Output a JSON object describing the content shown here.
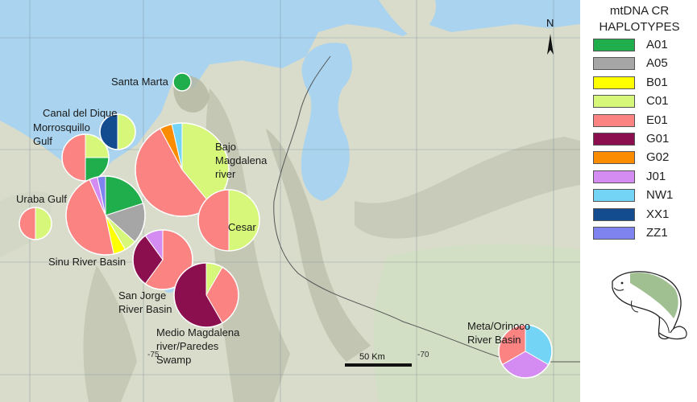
{
  "legend": {
    "title_line1": "mtDNA CR",
    "title_line2": "HAPLOTYPES",
    "items": [
      {
        "label": "A01",
        "color": "#1fae4b"
      },
      {
        "label": "A05",
        "color": "#a6a6a6"
      },
      {
        "label": "B01",
        "color": "#ffff00"
      },
      {
        "label": "C01",
        "color": "#d6f77a"
      },
      {
        "label": "E01",
        "color": "#fb8382"
      },
      {
        "label": "G01",
        "color": "#8b0f4f"
      },
      {
        "label": "G02",
        "color": "#fb8c00"
      },
      {
        "label": "J01",
        "color": "#d48cf2"
      },
      {
        "label": "NW1",
        "color": "#74d4f5"
      },
      {
        "label": "XX1",
        "color": "#134d8f"
      },
      {
        "label": "ZZ1",
        "color": "#7f83f0"
      }
    ]
  },
  "map": {
    "north_label": "N",
    "scale_label": "50 Km",
    "lon_labels": [
      "-75",
      "-70"
    ]
  },
  "sites": [
    {
      "name": "santa-marta",
      "label_lines": [
        "Santa Marta"
      ],
      "slices": [
        {
          "h": "A01",
          "v": 1
        }
      ]
    },
    {
      "name": "canal-del-dique",
      "label_lines": [
        "Canal del Dique"
      ],
      "slices": [
        {
          "h": "C01",
          "v": 1
        },
        {
          "h": "XX1",
          "v": 1
        }
      ]
    },
    {
      "name": "morrosquillo-gulf",
      "label_lines": [
        "Morrosquillo",
        "Gulf"
      ],
      "slices": [
        {
          "h": "C01",
          "v": 1
        },
        {
          "h": "A01",
          "v": 1
        },
        {
          "h": "E01",
          "v": 2
        }
      ]
    },
    {
      "name": "bajo-magdalena-river",
      "label_lines": [
        "Bajo",
        "Magdalena",
        "river"
      ],
      "slices": [
        {
          "h": "C01",
          "v": 11
        },
        {
          "h": "E01",
          "v": 15
        },
        {
          "h": "G02",
          "v": 1.2
        },
        {
          "h": "NW1",
          "v": 1
        }
      ]
    },
    {
      "name": "uraba-gulf",
      "label_lines": [
        "Uraba Gulf"
      ],
      "slices": [
        {
          "h": "C01",
          "v": 1
        },
        {
          "h": "E01",
          "v": 1
        }
      ]
    },
    {
      "name": "sinu-river-basin",
      "label_lines": [
        "Sinu River Basin"
      ],
      "slices": [
        {
          "h": "A01",
          "v": 6
        },
        {
          "h": "A05",
          "v": 5
        },
        {
          "h": "C01",
          "v": 1.5
        },
        {
          "h": "B01",
          "v": 1.5
        },
        {
          "h": "E01",
          "v": 14
        },
        {
          "h": "J01",
          "v": 1
        },
        {
          "h": "ZZ1",
          "v": 1
        }
      ]
    },
    {
      "name": "cesar",
      "label_lines": [
        "Cesar"
      ],
      "slices": [
        {
          "h": "C01",
          "v": 1
        },
        {
          "h": "E01",
          "v": 1
        }
      ]
    },
    {
      "name": "san-jorge-river-basin",
      "label_lines": [
        "San Jorge",
        "River Basin"
      ],
      "slices": [
        {
          "h": "E01",
          "v": 6
        },
        {
          "h": "G01",
          "v": 3
        },
        {
          "h": "J01",
          "v": 1
        }
      ]
    },
    {
      "name": "medio-magdalena-river-paredes-swamp",
      "label_lines": [
        "Medio Magdalena",
        "river/Paredes",
        "Swamp"
      ],
      "slices": [
        {
          "h": "C01",
          "v": 1
        },
        {
          "h": "E01",
          "v": 4
        },
        {
          "h": "G01",
          "v": 7
        }
      ]
    },
    {
      "name": "meta-orinoco-river-basin",
      "label_lines": [
        "Meta/Orinoco",
        "River Basin"
      ],
      "slices": [
        {
          "h": "NW1",
          "v": 1
        },
        {
          "h": "J01",
          "v": 1
        },
        {
          "h": "E01",
          "v": 1
        }
      ]
    }
  ]
}
